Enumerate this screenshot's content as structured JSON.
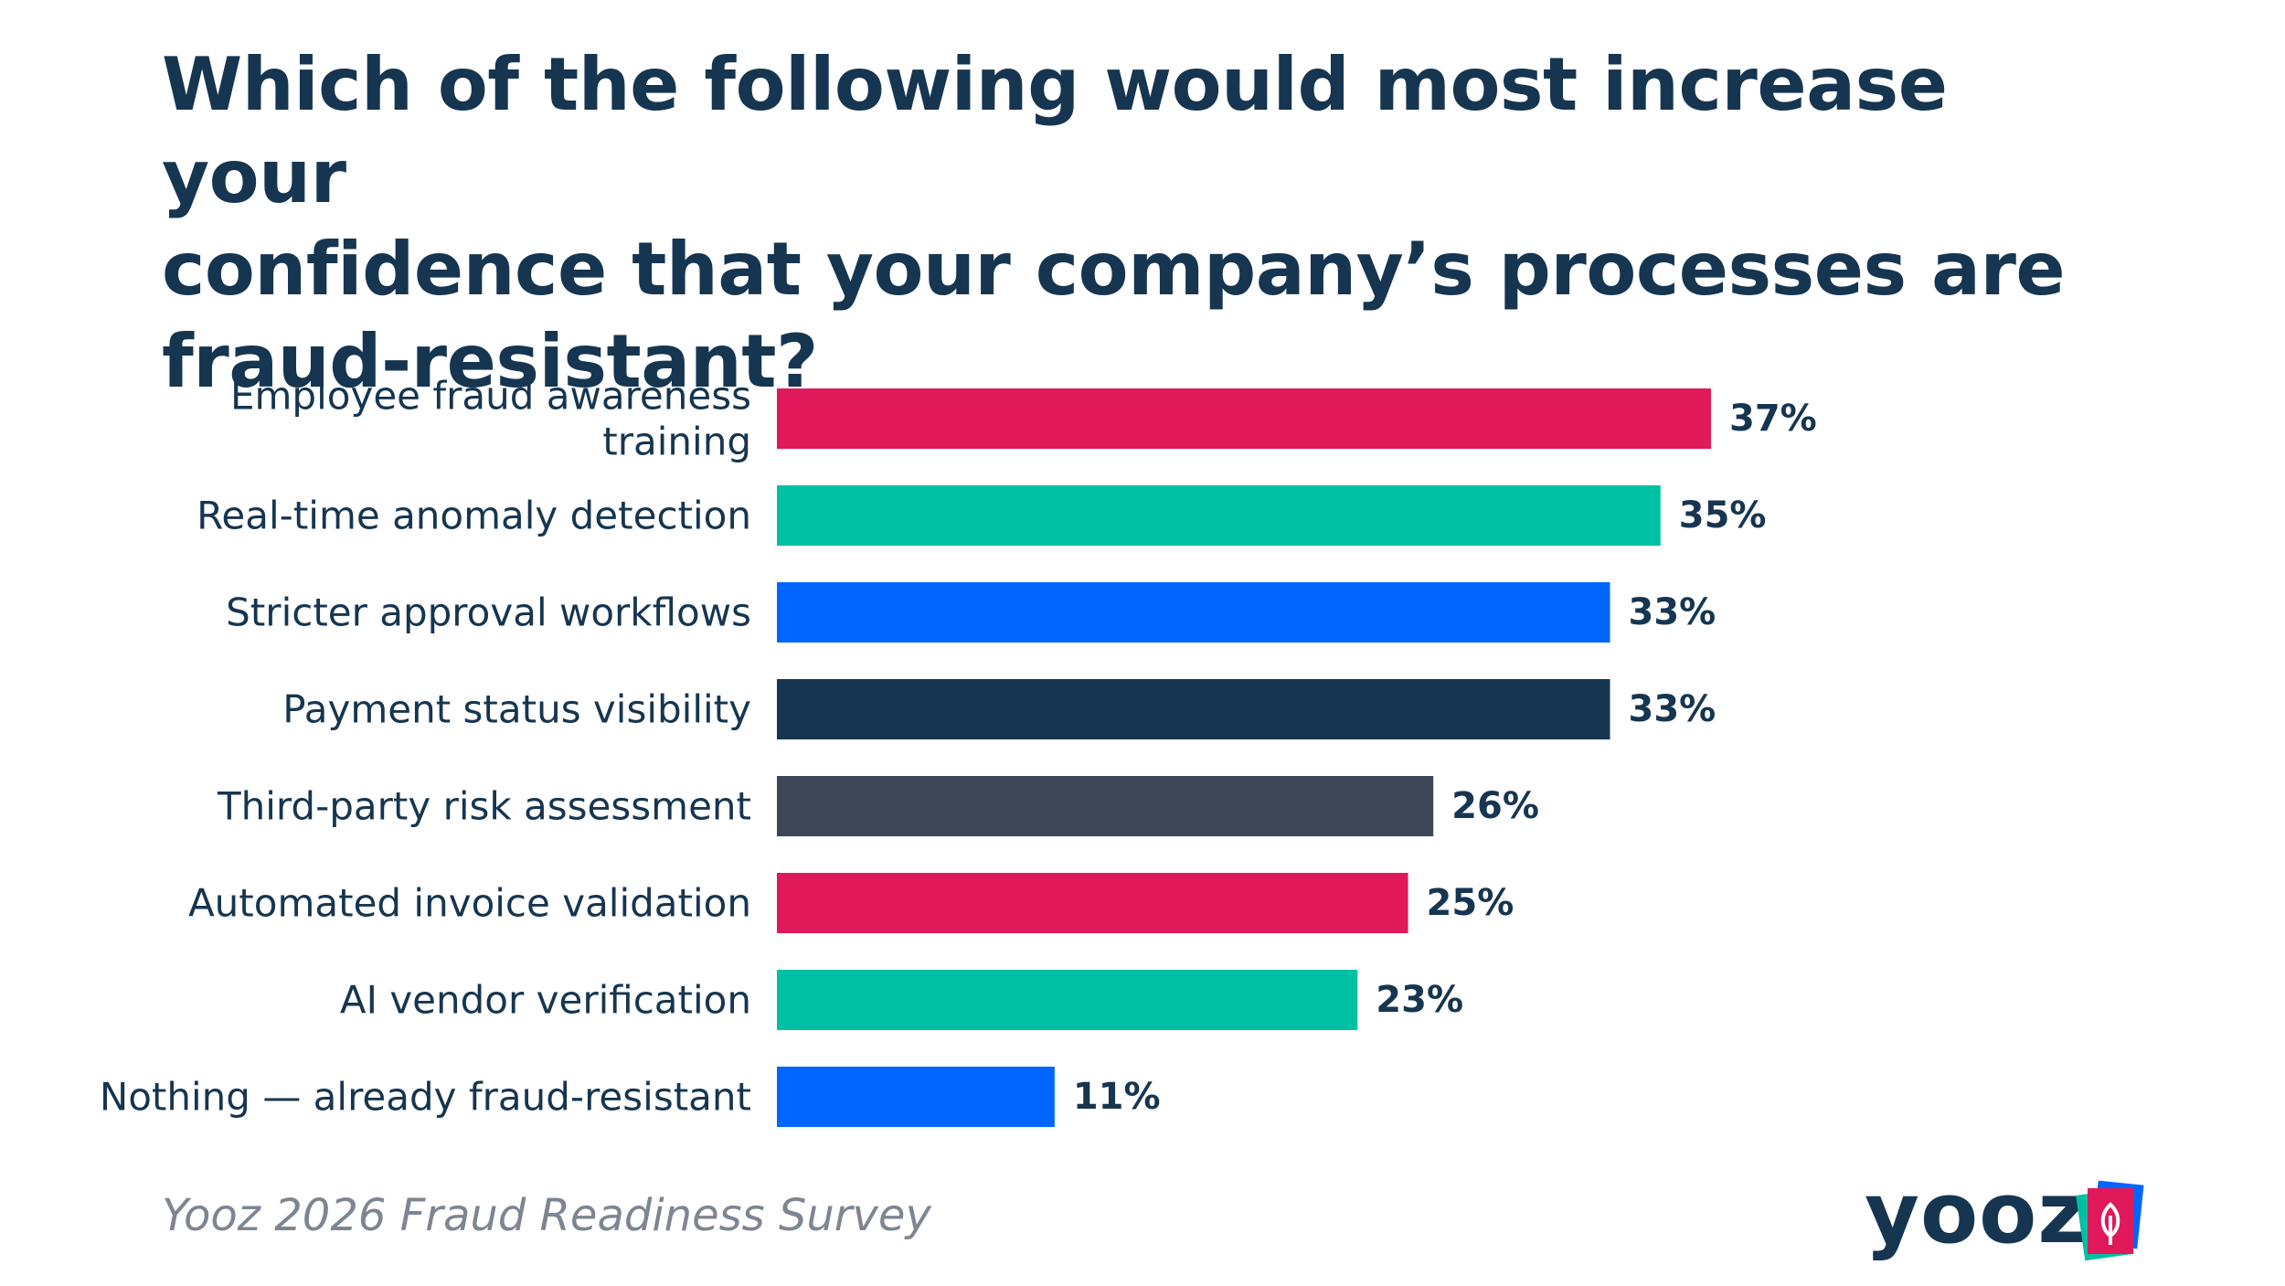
{
  "chart_data": {
    "type": "bar",
    "orientation": "horizontal",
    "title": "Which of the following would most increase your confidence that your company’s processes are fraud-resistant?",
    "title_lines": [
      "Which of the following would most increase your",
      "confidence that your company’s processes are",
      "fraud-resistant?"
    ],
    "categories": [
      [
        "Employee fraud awareness",
        "training"
      ],
      [
        "Real-time anomaly detection"
      ],
      [
        "Stricter approval workflows"
      ],
      [
        "Payment status visibility"
      ],
      [
        "Third-party risk assessment"
      ],
      [
        "Automated invoice validation"
      ],
      [
        "AI vendor verification"
      ],
      [
        "Nothing — already fraud-resistant"
      ]
    ],
    "values": [
      37,
      35,
      33,
      33,
      26,
      25,
      23,
      11
    ],
    "value_labels": [
      "37%",
      "35%",
      "33%",
      "33%",
      "26%",
      "25%",
      "23%",
      "11%"
    ],
    "colors": [
      "#e0195b",
      "#00c0a4",
      "#0066ff",
      "#163550",
      "#3d4656",
      "#e0195b",
      "#00c0a4",
      "#0066ff"
    ],
    "xlim": [
      0,
      37
    ],
    "grid": false,
    "legend": "none"
  },
  "source": "Yooz 2026 Fraud Readiness Survey",
  "logo": {
    "text": "yooz",
    "icon": "yooz-leaf-card-icon",
    "text_color": "#163550",
    "accent_colors": [
      "#e0195b",
      "#00c0a4",
      "#0066ff"
    ]
  }
}
